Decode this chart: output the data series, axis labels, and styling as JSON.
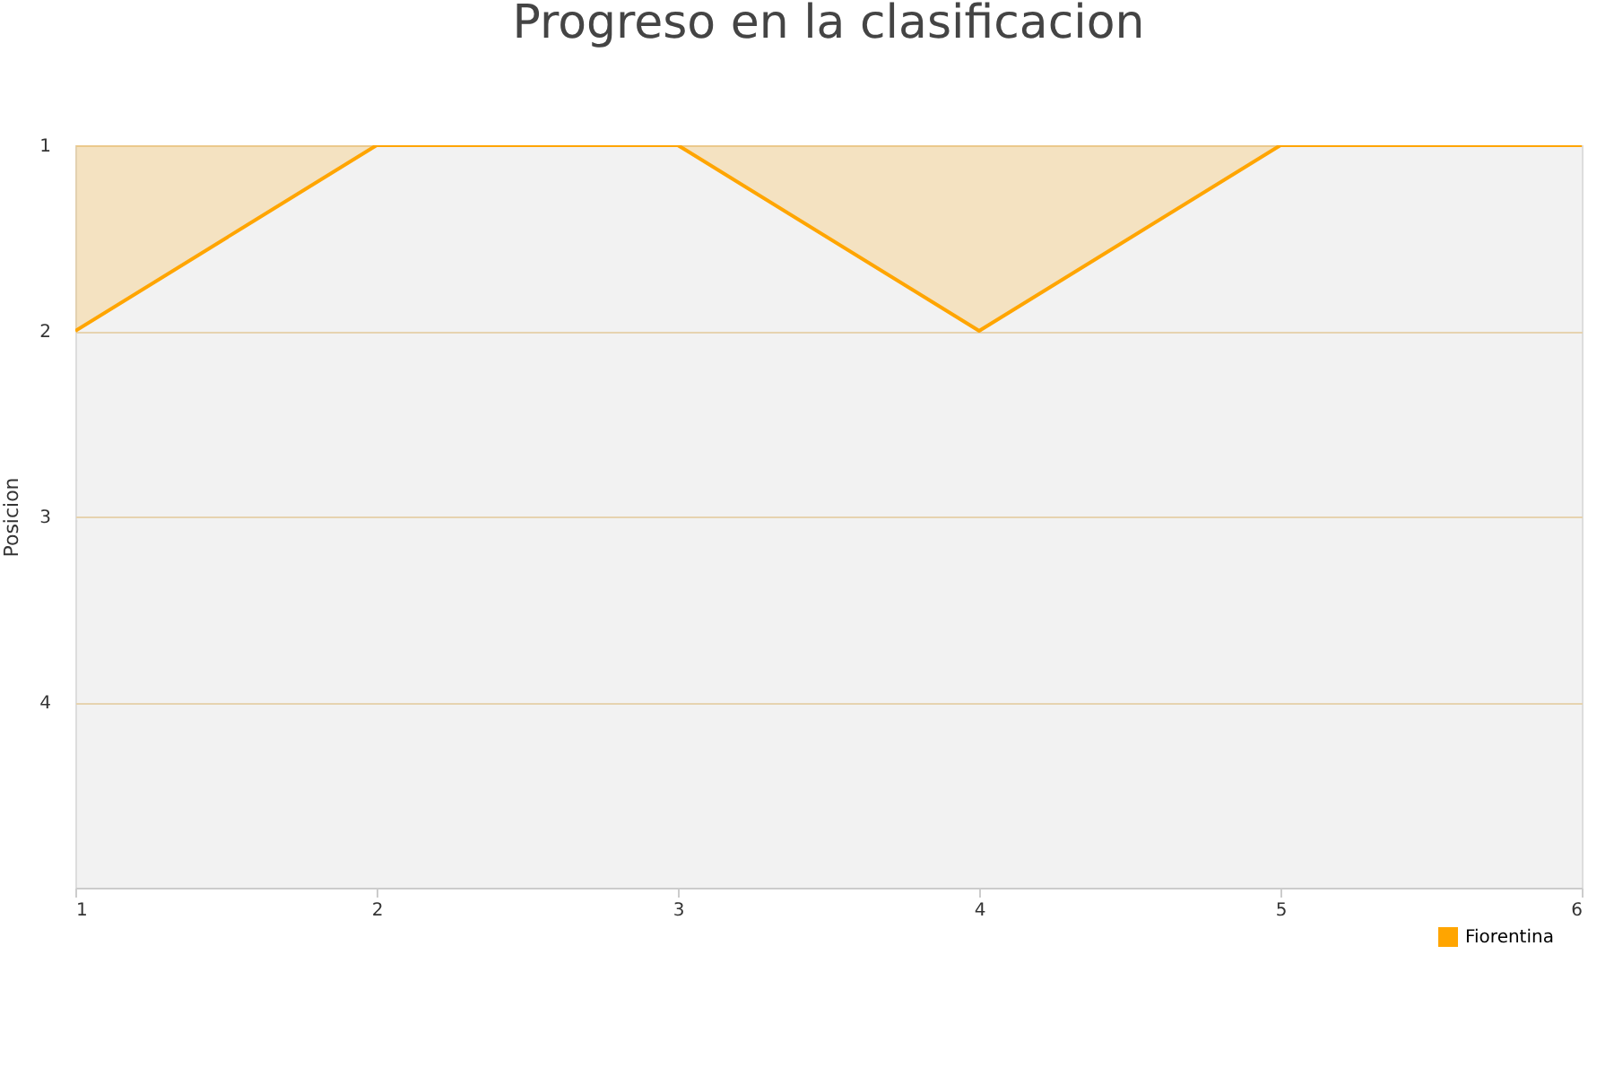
{
  "chart_data": {
    "type": "area",
    "title": "Progreso en la clasificacion",
    "ylabel": "Posicion",
    "x": [
      1,
      2,
      3,
      4,
      5,
      6
    ],
    "series": [
      {
        "name": "Fiorentina",
        "color": "#ffa500",
        "values": [
          2,
          1,
          1,
          2,
          1,
          1
        ]
      }
    ],
    "xlim": [
      1,
      6
    ],
    "xticks": [
      1,
      2,
      3,
      4,
      5,
      6
    ],
    "ylim": [
      5,
      1
    ],
    "yticks": [
      1,
      2,
      3,
      4
    ],
    "grid": "y",
    "legend": "bottom right"
  }
}
